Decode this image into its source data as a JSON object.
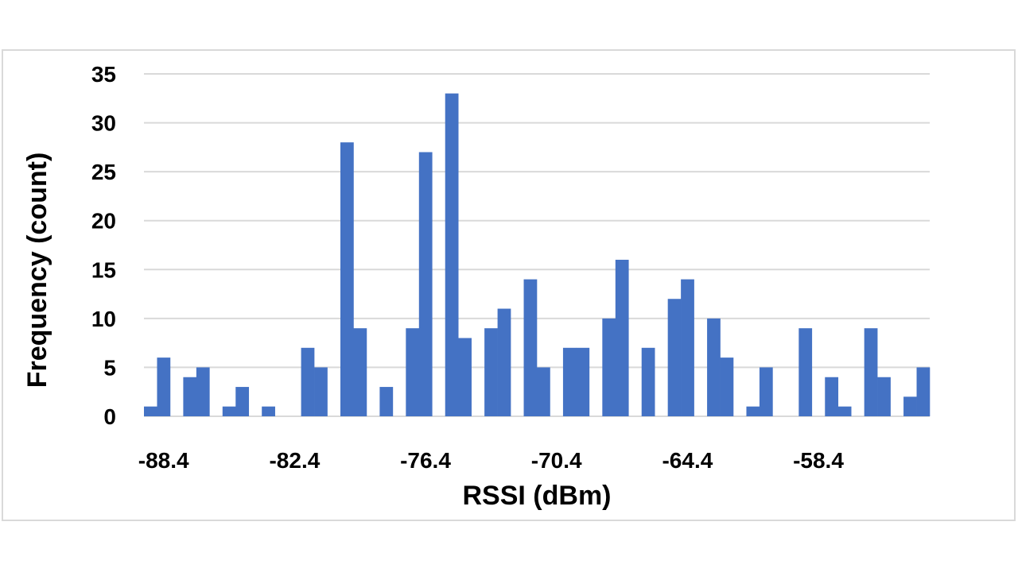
{
  "chart_data": {
    "type": "bar",
    "title": "",
    "xlabel": "RSSI (dBm)",
    "ylabel": "Frequency (count)",
    "ylim": [
      0,
      35
    ],
    "yticks": [
      "0",
      "5",
      "10",
      "15",
      "20",
      "25",
      "30",
      "35"
    ],
    "xtick_labels": [
      "-88.4",
      "-82.4",
      "-76.4",
      "-70.4",
      "-64.4",
      "-58.4"
    ],
    "x_start": -89,
    "bin_width": 0.6,
    "values": [
      1,
      6,
      0,
      4,
      5,
      0,
      1,
      3,
      0,
      1,
      0,
      0,
      7,
      5,
      0,
      28,
      9,
      0,
      3,
      0,
      9,
      27,
      0,
      33,
      8,
      0,
      9,
      11,
      0,
      14,
      5,
      0,
      7,
      7,
      0,
      10,
      16,
      0,
      7,
      0,
      12,
      14,
      0,
      10,
      6,
      0,
      1,
      5,
      0,
      0,
      9,
      0,
      4,
      1,
      0,
      9,
      4,
      0,
      2,
      5
    ],
    "bar_color": "#4472c4",
    "grid": true,
    "legend": "none"
  }
}
